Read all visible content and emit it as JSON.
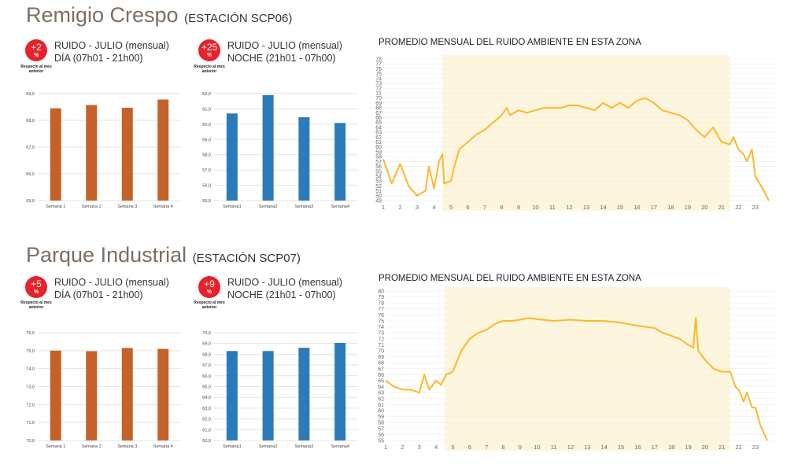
{
  "stations": [
    {
      "name": "Remigio Crespo",
      "code": "(ESTACIÓN SCP06)",
      "day": {
        "badge": "+2",
        "pct": "%",
        "note": "Respecto al mes anterior",
        "line1": "RUIDO - JULIO (mensual)",
        "line2": "DÍA (07h01 - 21h00)"
      },
      "night": {
        "badge": "+25",
        "pct": "%",
        "note": "Respecto al mes anterior",
        "line1": "RUIDO - JULIO (mensual)",
        "line2": "NOCHE (21h01 - 07h00)"
      },
      "line_title": "PROMEDIO MENSUAL DEL RUIDO AMBIENTE EN ESTA ZONA"
    },
    {
      "name": "Parque Industrial",
      "code": "(ESTACIÓN SCP07)",
      "day": {
        "badge": "+5",
        "pct": "%",
        "note": "Respecto al mes anterior",
        "line1": "RUIDO - JULIO (mensual)",
        "line2": "DÍA (07h01 - 21h00)"
      },
      "night": {
        "badge": "+9",
        "pct": "%",
        "note": "Respecto al mes anterior",
        "line1": "RUIDO - JULIO (mensual)",
        "line2": "NOCHE (21h01 - 07h00)"
      },
      "line_title": "PROMEDIO MENSUAL DEL RUIDO AMBIENTE EN ESTA ZONA"
    }
  ],
  "colors": {
    "day": "#c4622a",
    "night": "#2b7bba",
    "line": "#fbb829",
    "band": "#fdf6dc",
    "grid": "#e3e3e3"
  },
  "chart_data": [
    {
      "type": "bar",
      "station": 0,
      "title": "DÍA",
      "categories": [
        "Semana 1",
        "Semana 2",
        "Semana 3",
        "Semana 4"
      ],
      "values": [
        68.45,
        68.57,
        68.47,
        68.78
      ],
      "ylim": [
        65,
        69
      ],
      "ystep": 1
    },
    {
      "type": "bar",
      "station": 0,
      "title": "NOCHE",
      "categories": [
        "Semana1",
        "Semana2",
        "Semana3",
        "Semana4"
      ],
      "values": [
        60.7,
        61.9,
        60.45,
        60.08
      ],
      "ylim": [
        55,
        62
      ],
      "ystep": 1
    },
    {
      "type": "line",
      "station": 0,
      "title": "PROMEDIO MENSUAL DEL RUIDO AMBIENTE EN ESTA ZONA",
      "ylim": [
        49,
        78
      ],
      "xlim": [
        1,
        23.8
      ],
      "xticks": [
        1,
        2,
        3,
        4,
        5,
        6,
        7,
        8,
        9,
        10,
        11,
        12,
        13,
        14,
        15,
        16,
        17,
        18,
        19,
        20,
        21,
        22,
        23
      ],
      "band": [
        4.5,
        21.5
      ],
      "x": [
        1,
        1.5,
        2,
        2.5,
        3,
        3.5,
        3.7,
        4,
        4.3,
        4.5,
        4.6,
        5,
        5.2,
        5.5,
        6,
        6.5,
        7,
        7.5,
        8,
        8.3,
        8.5,
        9,
        9.5,
        10,
        10.5,
        11,
        11.5,
        12,
        12.5,
        13,
        13.5,
        14,
        14.5,
        15,
        15.5,
        16,
        16.5,
        17,
        17.5,
        18,
        18.5,
        19,
        19.5,
        20,
        20.5,
        21,
        21.5,
        21.7,
        22,
        22.3,
        22.5,
        22.8,
        23,
        23.5,
        23.8
      ],
      "y": [
        57.5,
        52.5,
        56.5,
        52,
        50,
        51,
        56,
        51.5,
        57,
        58.5,
        52.5,
        53,
        56,
        59.5,
        61,
        62.5,
        63.5,
        65,
        66.5,
        68,
        66.5,
        67.5,
        67,
        67.5,
        68,
        68,
        68,
        68.5,
        68.5,
        68,
        67.5,
        69,
        68,
        69,
        68,
        69.5,
        70,
        69,
        67.5,
        67,
        66.5,
        65.5,
        63.5,
        62,
        64,
        61,
        60.5,
        62,
        59.5,
        58.5,
        57,
        59.5,
        54,
        51,
        49
      ]
    },
    {
      "type": "bar",
      "station": 1,
      "title": "DÍA",
      "categories": [
        "Semana 1",
        "Semana 2",
        "Semana 3",
        "Semana 4"
      ],
      "values": [
        75.0,
        74.97,
        75.15,
        75.1
      ],
      "ylim": [
        70,
        76
      ],
      "ystep": 1
    },
    {
      "type": "bar",
      "station": 1,
      "title": "NOCHE",
      "categories": [
        "Semana1",
        "Semana2",
        "Semana3",
        "Semana4"
      ],
      "values": [
        68.3,
        68.3,
        68.6,
        69.05
      ],
      "ylim": [
        60,
        70
      ],
      "ystep": 1
    },
    {
      "type": "line",
      "station": 1,
      "title": "PROMEDIO MENSUAL DEL RUIDO AMBIENTE EN ESTA ZONA",
      "ylim": [
        55,
        80
      ],
      "xlim": [
        1,
        23.8
      ],
      "xticks": [
        1,
        2,
        3,
        4,
        5,
        6,
        7,
        8,
        9,
        10,
        11,
        12,
        13,
        14,
        15,
        16,
        17,
        18,
        19,
        20,
        21,
        22,
        23
      ],
      "band": [
        4.5,
        21.5
      ],
      "x": [
        1,
        1.5,
        2,
        2.5,
        3,
        3.3,
        3.6,
        4,
        4.3,
        4.6,
        5,
        5.5,
        6,
        6.5,
        7,
        7.5,
        8,
        8.5,
        9,
        9.5,
        10,
        11,
        12,
        13,
        14,
        15,
        16,
        17,
        17.5,
        18,
        18.5,
        19,
        19.3,
        19.45,
        19.6,
        20,
        20.5,
        21,
        21.5,
        21.8,
        22,
        22.3,
        22.5,
        22.8,
        23,
        23.3,
        23.7
      ],
      "y": [
        65,
        64,
        63.5,
        63.5,
        63,
        66,
        63.5,
        65,
        64.3,
        66,
        66.5,
        70,
        72,
        73,
        73.5,
        74.5,
        75,
        75,
        75.2,
        75.5,
        75.3,
        75,
        75.2,
        75,
        75,
        74.7,
        74.2,
        73.8,
        73,
        72.5,
        72,
        71,
        70.5,
        75.5,
        70,
        68.5,
        67,
        66.5,
        66.5,
        64,
        63.5,
        61.5,
        63,
        60.5,
        60.5,
        57.5,
        55
      ]
    }
  ]
}
